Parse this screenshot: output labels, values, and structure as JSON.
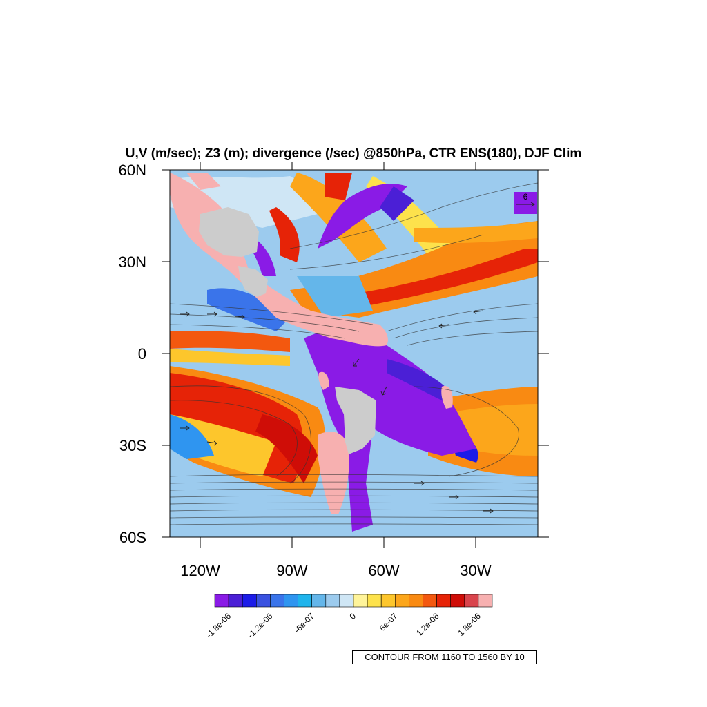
{
  "title": "U,V (m/sec); Z3 (m); divergence (/sec) @850hPa, CTR ENS(180), DJF Clim",
  "lat_labels": [
    "60N",
    "30N",
    "0",
    "30S",
    "60S"
  ],
  "lon_labels": [
    "120W",
    "90W",
    "60W",
    "30W"
  ],
  "colorbar": {
    "colors": [
      "#8a1be6",
      "#4b1fd6",
      "#1c1ce8",
      "#3a52e0",
      "#3a74ea",
      "#2f95f0",
      "#1fb4ec",
      "#64b6ea",
      "#9ccbee",
      "#cfe6f5",
      "#fff49a",
      "#fde24c",
      "#fdc62c",
      "#fca61b",
      "#f98a12",
      "#f3580f",
      "#e62307",
      "#cf0d07",
      "#d9444c",
      "#f7b0b0"
    ],
    "labels": [
      "-1.8e-06",
      "-1.2e-06",
      "-6e-07",
      "0",
      "6e-07",
      "1.2e-06",
      "1.8e-06"
    ]
  },
  "reference_vector": {
    "label": "6",
    "color": "#8a1be6"
  },
  "contour_note": "CONTOUR FROM 1160 TO 1560 BY 10"
}
